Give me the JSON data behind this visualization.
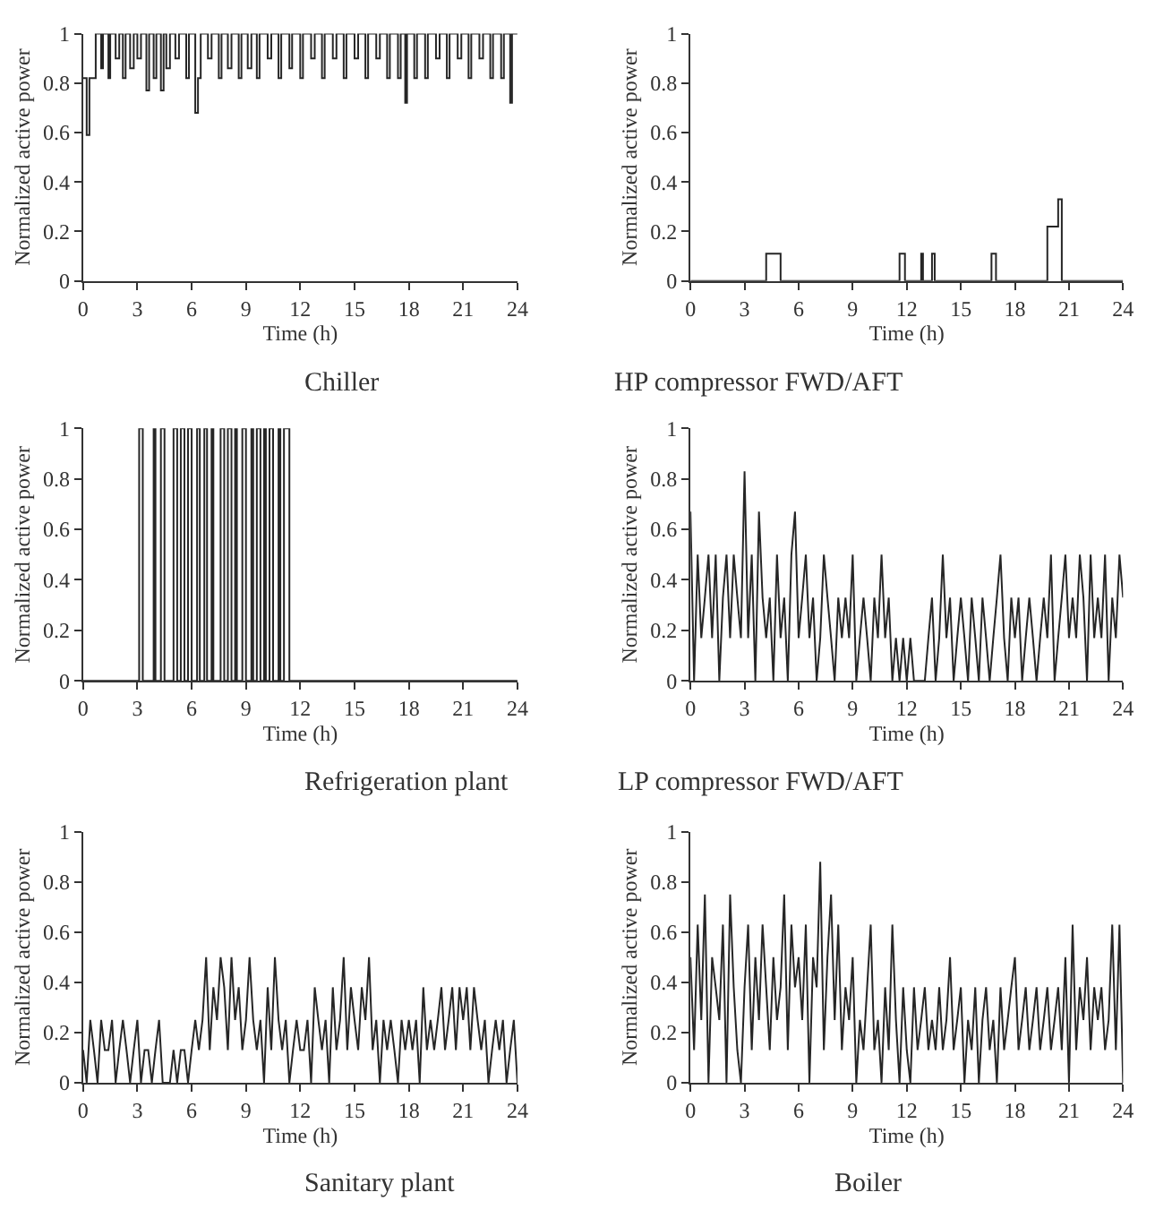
{
  "chart_data": [
    {
      "type": "step",
      "title": "Chiller",
      "xlabel": "Time (h)",
      "ylabel": "Normalized active power",
      "xlim": [
        0,
        24
      ],
      "xticks": [
        0,
        3,
        6,
        9,
        12,
        15,
        18,
        21,
        24
      ],
      "ylim": [
        0,
        1
      ],
      "yticks": [
        0,
        0.2,
        0.4,
        0.6,
        0.8,
        1
      ],
      "x": [
        0,
        0.2,
        0.35,
        0.7,
        1.0,
        1.1,
        1.4,
        1.5,
        1.8,
        2.0,
        2.2,
        2.35,
        2.6,
        2.8,
        3.0,
        3.2,
        3.5,
        3.65,
        3.9,
        4.05,
        4.3,
        4.45,
        4.6,
        4.8,
        5.1,
        5.3,
        5.7,
        5.85,
        6.2,
        6.35,
        6.5,
        6.9,
        7.1,
        7.5,
        7.65,
        8.0,
        8.2,
        8.6,
        8.75,
        9.1,
        9.3,
        9.6,
        9.75,
        10.2,
        10.4,
        10.8,
        10.95,
        11.4,
        11.55,
        12.0,
        12.15,
        12.6,
        12.8,
        13.2,
        13.35,
        13.8,
        14.0,
        14.4,
        14.55,
        15.0,
        15.2,
        15.6,
        15.75,
        16.2,
        16.4,
        16.8,
        16.95,
        17.4,
        17.55,
        17.8,
        17.9,
        18.3,
        18.45,
        18.9,
        19.05,
        19.5,
        19.7,
        20.1,
        20.25,
        20.7,
        20.9,
        21.3,
        21.45,
        21.9,
        22.1,
        22.5,
        22.65,
        23.1,
        23.25,
        23.6,
        23.7,
        24
      ],
      "series": [
        {
          "color": "#262626",
          "values": [
            0.82,
            0.59,
            0.82,
            1,
            0.86,
            1,
            0.82,
            1,
            0.9,
            1,
            0.82,
            1,
            0.86,
            1,
            0.9,
            1,
            0.77,
            1,
            0.82,
            1,
            0.77,
            1,
            0.86,
            1,
            0.9,
            1,
            0.82,
            1,
            0.68,
            0.82,
            1,
            0.9,
            1,
            0.82,
            1,
            0.86,
            1,
            0.82,
            1,
            0.86,
            1,
            0.82,
            1,
            0.9,
            1,
            0.82,
            1,
            0.86,
            1,
            0.82,
            1,
            0.9,
            1,
            0.82,
            1,
            0.9,
            1,
            0.82,
            1,
            0.9,
            1,
            0.82,
            1,
            0.9,
            1,
            0.82,
            1,
            0.82,
            1,
            0.72,
            1,
            0.82,
            1,
            0.82,
            1,
            0.9,
            1,
            0.82,
            1,
            0.9,
            1,
            0.82,
            1,
            0.9,
            1,
            0.82,
            1,
            0.82,
            1,
            0.72,
            1,
            1
          ]
        }
      ]
    },
    {
      "type": "step",
      "title": "HP compressor FWD/AFT",
      "xlabel": "Time (h)",
      "ylabel": "Normalized active power",
      "xlim": [
        0,
        24
      ],
      "xticks": [
        0,
        3,
        6,
        9,
        12,
        15,
        18,
        21,
        24
      ],
      "ylim": [
        0,
        1
      ],
      "yticks": [
        0,
        0.2,
        0.4,
        0.6,
        0.8,
        1
      ],
      "x": [
        0,
        4.2,
        5.0,
        11.6,
        11.9,
        12.8,
        12.9,
        13.4,
        13.55,
        16.7,
        16.95,
        19.8,
        20.4,
        20.6,
        24
      ],
      "series": [
        {
          "color": "#262626",
          "values": [
            0,
            0.11,
            0,
            0.11,
            0,
            0.11,
            0,
            0.11,
            0,
            0.11,
            0,
            0.22,
            0.33,
            0,
            0
          ]
        }
      ]
    },
    {
      "type": "step",
      "title": "Refrigeration plant",
      "xlabel": "Time (h)",
      "ylabel": "Normalized active power",
      "xlim": [
        0,
        24
      ],
      "xticks": [
        0,
        3,
        6,
        9,
        12,
        15,
        18,
        21,
        24
      ],
      "ylim": [
        0,
        1
      ],
      "yticks": [
        0,
        0.2,
        0.4,
        0.6,
        0.8,
        1
      ],
      "x": [
        0,
        3.1,
        3.3,
        3.9,
        4.0,
        4.3,
        4.5,
        5.0,
        5.2,
        5.4,
        5.6,
        5.8,
        6.0,
        6.3,
        6.45,
        6.7,
        6.85,
        7.1,
        7.2,
        7.6,
        7.8,
        8.0,
        8.2,
        8.4,
        8.5,
        8.8,
        9.0,
        9.3,
        9.4,
        9.6,
        9.8,
        10.0,
        10.1,
        10.3,
        10.5,
        10.8,
        10.9,
        11.1,
        11.4,
        24
      ],
      "series": [
        {
          "color": "#262626",
          "values": [
            0,
            1,
            0,
            1,
            0,
            1,
            0,
            1,
            0,
            1,
            0,
            1,
            0,
            1,
            0,
            1,
            0,
            1,
            0,
            1,
            0,
            1,
            0,
            1,
            0,
            1,
            0,
            1,
            0,
            1,
            0,
            1,
            0,
            1,
            0,
            1,
            0,
            1,
            0,
            0
          ]
        }
      ]
    },
    {
      "type": "line",
      "title": "LP compressor FWD/AFT",
      "xlabel": "Time (h)",
      "ylabel": "Normalized active power",
      "xlim": [
        0,
        24
      ],
      "xticks": [
        0,
        3,
        6,
        9,
        12,
        15,
        18,
        21,
        24
      ],
      "ylim": [
        0,
        1
      ],
      "yticks": [
        0,
        0.2,
        0.4,
        0.6,
        0.8,
        1
      ],
      "x": [
        0,
        0.2,
        0.4,
        0.6,
        0.8,
        1,
        1.2,
        1.4,
        1.6,
        1.8,
        2,
        2.2,
        2.4,
        2.6,
        2.8,
        3,
        3.2,
        3.4,
        3.6,
        3.8,
        4,
        4.2,
        4.4,
        4.6,
        4.8,
        5,
        5.2,
        5.4,
        5.6,
        5.8,
        6,
        6.2,
        6.4,
        6.6,
        6.8,
        7,
        7.2,
        7.4,
        7.6,
        7.8,
        8,
        8.2,
        8.4,
        8.6,
        8.8,
        9,
        9.2,
        9.4,
        9.6,
        9.8,
        10,
        10.2,
        10.4,
        10.6,
        10.8,
        11,
        11.2,
        11.4,
        11.6,
        11.8,
        12,
        12.2,
        12.4,
        12.6,
        12.8,
        13,
        13.2,
        13.4,
        13.6,
        13.8,
        14,
        14.2,
        14.4,
        14.6,
        14.8,
        15,
        15.2,
        15.4,
        15.6,
        15.8,
        16,
        16.2,
        16.4,
        16.6,
        16.8,
        17,
        17.2,
        17.4,
        17.6,
        17.8,
        18,
        18.2,
        18.4,
        18.6,
        18.8,
        19,
        19.2,
        19.4,
        19.6,
        19.8,
        20,
        20.2,
        20.4,
        20.6,
        20.8,
        21,
        21.2,
        21.4,
        21.6,
        21.8,
        22,
        22.2,
        22.4,
        22.6,
        22.8,
        23,
        23.2,
        23.4,
        23.6,
        23.8,
        24
      ],
      "series": [
        {
          "color": "#262626",
          "values": [
            0.67,
            0,
            0.5,
            0.17,
            0.33,
            0.5,
            0.17,
            0.5,
            0,
            0.33,
            0.5,
            0.17,
            0.5,
            0.33,
            0.17,
            0.83,
            0.17,
            0.5,
            0,
            0.67,
            0.33,
            0.17,
            0.33,
            0,
            0.5,
            0.17,
            0.33,
            0,
            0.5,
            0.67,
            0.17,
            0.33,
            0.5,
            0.17,
            0.33,
            0,
            0.17,
            0.5,
            0.33,
            0.17,
            0,
            0.33,
            0.17,
            0.33,
            0.17,
            0.5,
            0,
            0.17,
            0.33,
            0.17,
            0,
            0.33,
            0.17,
            0.5,
            0.17,
            0.33,
            0,
            0.17,
            0,
            0.17,
            0,
            0.17,
            0,
            0,
            0,
            0,
            0.17,
            0.33,
            0,
            0.17,
            0.5,
            0.17,
            0.33,
            0,
            0.17,
            0.33,
            0.17,
            0,
            0.33,
            0.17,
            0,
            0.33,
            0.17,
            0,
            0.17,
            0.33,
            0.5,
            0.17,
            0,
            0.33,
            0.17,
            0.33,
            0,
            0.17,
            0.33,
            0.17,
            0,
            0.17,
            0.33,
            0.17,
            0.5,
            0,
            0.17,
            0.33,
            0.5,
            0.17,
            0.33,
            0.17,
            0.5,
            0.33,
            0,
            0.5,
            0.17,
            0.33,
            0.17,
            0.5,
            0,
            0.33,
            0.17,
            0.5,
            0.33
          ]
        }
      ]
    },
    {
      "type": "line",
      "title": "Sanitary plant",
      "xlabel": "Time (h)",
      "ylabel": "Normalized active power",
      "xlim": [
        0,
        24
      ],
      "xticks": [
        0,
        3,
        6,
        9,
        12,
        15,
        18,
        21,
        24
      ],
      "ylim": [
        0,
        1
      ],
      "yticks": [
        0,
        0.2,
        0.4,
        0.6,
        0.8,
        1
      ],
      "x": [
        0,
        0.2,
        0.4,
        0.6,
        0.8,
        1,
        1.2,
        1.4,
        1.6,
        1.8,
        2,
        2.2,
        2.4,
        2.6,
        2.8,
        3,
        3.2,
        3.4,
        3.6,
        3.8,
        4,
        4.2,
        4.4,
        4.6,
        4.8,
        5,
        5.2,
        5.4,
        5.6,
        5.8,
        6,
        6.2,
        6.4,
        6.6,
        6.8,
        7,
        7.2,
        7.4,
        7.6,
        7.8,
        8,
        8.2,
        8.4,
        8.6,
        8.8,
        9,
        9.2,
        9.4,
        9.6,
        9.8,
        10,
        10.2,
        10.4,
        10.6,
        10.8,
        11,
        11.2,
        11.4,
        11.6,
        11.8,
        12,
        12.2,
        12.4,
        12.6,
        12.8,
        13,
        13.2,
        13.4,
        13.6,
        13.8,
        14,
        14.2,
        14.4,
        14.6,
        14.8,
        15,
        15.2,
        15.4,
        15.6,
        15.8,
        16,
        16.2,
        16.4,
        16.6,
        16.8,
        17,
        17.2,
        17.4,
        17.6,
        17.8,
        18,
        18.2,
        18.4,
        18.6,
        18.8,
        19,
        19.2,
        19.4,
        19.6,
        19.8,
        20,
        20.2,
        20.4,
        20.6,
        20.8,
        21,
        21.2,
        21.4,
        21.6,
        21.8,
        22,
        22.2,
        22.4,
        22.6,
        22.8,
        23,
        23.2,
        23.4,
        23.6,
        23.8,
        24
      ],
      "series": [
        {
          "color": "#262626",
          "values": [
            0.13,
            0,
            0.25,
            0.13,
            0,
            0.25,
            0.13,
            0.13,
            0.25,
            0,
            0.13,
            0.25,
            0.13,
            0,
            0.13,
            0.25,
            0,
            0.13,
            0.13,
            0,
            0.13,
            0.25,
            0,
            0,
            0,
            0.13,
            0,
            0.13,
            0.13,
            0,
            0.13,
            0.25,
            0.13,
            0.25,
            0.5,
            0.13,
            0.38,
            0.25,
            0.5,
            0.38,
            0.13,
            0.5,
            0.25,
            0.38,
            0.13,
            0.25,
            0.5,
            0.25,
            0.13,
            0.25,
            0,
            0.38,
            0.13,
            0.5,
            0.25,
            0.13,
            0.25,
            0,
            0.13,
            0.25,
            0.13,
            0.13,
            0.25,
            0,
            0.38,
            0.25,
            0.13,
            0.25,
            0,
            0.38,
            0.13,
            0.25,
            0.5,
            0.13,
            0.38,
            0.25,
            0.13,
            0.38,
            0.25,
            0.5,
            0.13,
            0.25,
            0,
            0.25,
            0.13,
            0.25,
            0.13,
            0,
            0.25,
            0.13,
            0.25,
            0.13,
            0.25,
            0,
            0.38,
            0.13,
            0.25,
            0.13,
            0.25,
            0.38,
            0.13,
            0.25,
            0.38,
            0.13,
            0.38,
            0.25,
            0.38,
            0.13,
            0.38,
            0.25,
            0.13,
            0.25,
            0,
            0.13,
            0.25,
            0.13,
            0.25,
            0,
            0.13,
            0.25,
            0
          ]
        }
      ]
    },
    {
      "type": "line",
      "title": "Boiler",
      "xlabel": "Time (h)",
      "ylabel": "Normalized active power",
      "xlim": [
        0,
        24
      ],
      "xticks": [
        0,
        3,
        6,
        9,
        12,
        15,
        18,
        21,
        24
      ],
      "ylim": [
        0,
        1
      ],
      "yticks": [
        0,
        0.2,
        0.4,
        0.6,
        0.8,
        1
      ],
      "x": [
        0,
        0.2,
        0.4,
        0.6,
        0.8,
        1,
        1.2,
        1.4,
        1.6,
        1.8,
        2,
        2.2,
        2.4,
        2.6,
        2.8,
        3,
        3.2,
        3.4,
        3.6,
        3.8,
        4,
        4.2,
        4.4,
        4.6,
        4.8,
        5,
        5.2,
        5.4,
        5.6,
        5.8,
        6,
        6.2,
        6.4,
        6.6,
        6.8,
        7,
        7.2,
        7.4,
        7.6,
        7.8,
        8,
        8.2,
        8.4,
        8.6,
        8.8,
        9,
        9.2,
        9.4,
        9.6,
        9.8,
        10,
        10.2,
        10.4,
        10.6,
        10.8,
        11,
        11.2,
        11.4,
        11.6,
        11.8,
        12,
        12.2,
        12.4,
        12.6,
        12.8,
        13,
        13.2,
        13.4,
        13.6,
        13.8,
        14,
        14.2,
        14.4,
        14.6,
        14.8,
        15,
        15.2,
        15.4,
        15.6,
        15.8,
        16,
        16.2,
        16.4,
        16.6,
        16.8,
        17,
        17.2,
        17.4,
        17.6,
        17.8,
        18,
        18.2,
        18.4,
        18.6,
        18.8,
        19,
        19.2,
        19.4,
        19.6,
        19.8,
        20,
        20.2,
        20.4,
        20.6,
        20.8,
        21,
        21.2,
        21.4,
        21.6,
        21.8,
        22,
        22.2,
        22.4,
        22.6,
        22.8,
        23,
        23.2,
        23.4,
        23.6,
        23.8,
        24
      ],
      "series": [
        {
          "color": "#262626",
          "values": [
            0.5,
            0.13,
            0.63,
            0.25,
            0.75,
            0,
            0.5,
            0.38,
            0.25,
            0.63,
            0,
            0.75,
            0.38,
            0.13,
            0,
            0.38,
            0.63,
            0.13,
            0.5,
            0.25,
            0.63,
            0.38,
            0.13,
            0.5,
            0.25,
            0.38,
            0.75,
            0.13,
            0.63,
            0.38,
            0.5,
            0.25,
            0.63,
            0,
            0.5,
            0.38,
            0.88,
            0.13,
            0.5,
            0.75,
            0.25,
            0.63,
            0.13,
            0.38,
            0.25,
            0.5,
            0,
            0.25,
            0.13,
            0.38,
            0.63,
            0.13,
            0.25,
            0,
            0.38,
            0.13,
            0.63,
            0.25,
            0,
            0.38,
            0.13,
            0,
            0.38,
            0.13,
            0.25,
            0.38,
            0.13,
            0.25,
            0.13,
            0.38,
            0.13,
            0.25,
            0.5,
            0.13,
            0.25,
            0.38,
            0,
            0.25,
            0.13,
            0.38,
            0,
            0.25,
            0.38,
            0.13,
            0.25,
            0,
            0.38,
            0.13,
            0.25,
            0.38,
            0.5,
            0.13,
            0.25,
            0.38,
            0.13,
            0.25,
            0.38,
            0.13,
            0.25,
            0.38,
            0.13,
            0.25,
            0.38,
            0.13,
            0.5,
            0,
            0.63,
            0.13,
            0.38,
            0.25,
            0.5,
            0.13,
            0.38,
            0.25,
            0.38,
            0.13,
            0.25,
            0.63,
            0.13,
            0.63,
            0
          ]
        }
      ]
    }
  ]
}
